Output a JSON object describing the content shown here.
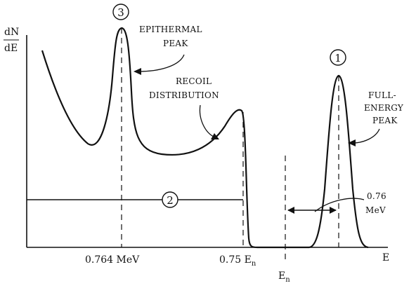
{
  "chart_data": {
    "type": "line",
    "ylabel_top": "dN",
    "ylabel_bottom": "dE",
    "xlabel": "E",
    "ticks": {
      "t1": "0.764 MeV",
      "t2_main": "0.75 E",
      "t2_sub": "n",
      "t3_main": "E",
      "t3_sub": "n"
    },
    "annotations": {
      "epithermal_1": "EPITHERMAL",
      "epithermal_2": "PEAK",
      "recoil_1": "RECOIL",
      "recoil_2": "DISTRIBUTION",
      "full_1": "FULL-",
      "full_2": "ENERGY",
      "full_3": "PEAK",
      "width_1": "0.76",
      "width_2": "MeV"
    },
    "markers": {
      "m1": "1",
      "m2": "2",
      "m3": "3"
    },
    "colors": {
      "ink": "#111111"
    }
  }
}
